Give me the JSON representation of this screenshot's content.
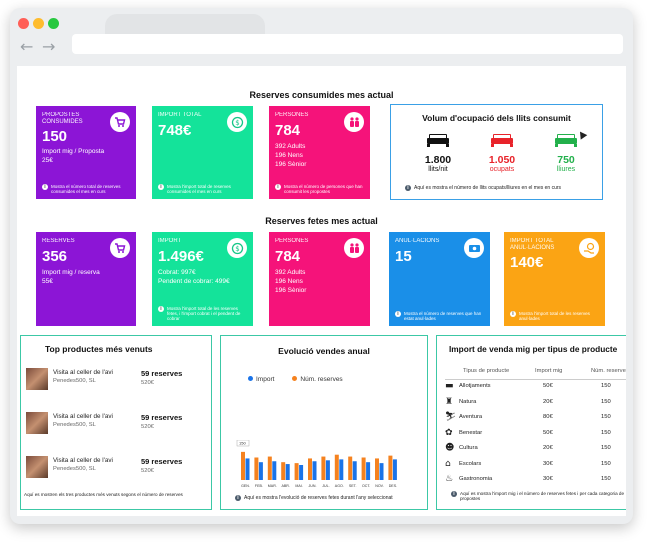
{
  "section1": {
    "title": "Reserves consumides mes actual"
  },
  "s1cards": [
    {
      "label": "PROPOSTES CONSUMIDES",
      "value": "150",
      "lines": [
        "Import mig / Proposta",
        "25€"
      ],
      "footer": "Mostra el número total de reserves consumides el mes en curs",
      "color": "#8c15d6",
      "icon": "cart-icon",
      "icon_color": "#8c15d6"
    },
    {
      "label": "IMPORT TOTAL",
      "value": "748€",
      "lines": [],
      "footer": "Mostra l'import total de reserves consumides el mes en curs",
      "color": "#14e39a",
      "icon": "coin-icon",
      "icon_color": "#14c787"
    },
    {
      "label": "PERSONES",
      "value": "784",
      "lines": [
        "392 Adults",
        "196 Nens",
        "196 Sènior"
      ],
      "footer": "Mostra el número de persones que han consumit les propostes",
      "color": "#f5137a",
      "icon": "people-icon",
      "icon_color": "#f5137a"
    }
  ],
  "occupancy": {
    "title": "Volum d'ocupació dels llits consumit",
    "items": [
      {
        "value": "1.800",
        "label": "llits/nit",
        "color": "#111111"
      },
      {
        "value": "1.050",
        "label": "ocupats",
        "color": "#e8232a"
      },
      {
        "value": "750",
        "label": "lliures",
        "color": "#22b04b"
      }
    ],
    "note": "Aquí es mostra el número de llits ocupats/lliures en el mes en curs"
  },
  "section2": {
    "title": "Reserves fetes mes actual"
  },
  "s2cards": [
    {
      "label": "RESERVES",
      "value": "356",
      "lines": [
        "Import mig / reserva",
        "55€"
      ],
      "footer": "",
      "color": "#8c15d6",
      "icon": "cart-icon",
      "icon_color": "#8c15d6"
    },
    {
      "label": "IMPORT",
      "value": "1.496€",
      "lines": [
        "Cobrat: 997€",
        "Pendent de cobrar: 499€"
      ],
      "footer": "Mostra l'import total de les reserves fetes, i l'import cobrat i el pendent de cobrar",
      "color": "#14e39a",
      "icon": "coin-icon",
      "icon_color": "#14c787"
    },
    {
      "label": "PERSONES",
      "value": "784",
      "lines": [
        "392 Adults",
        "196 Nens",
        "196 Sènior"
      ],
      "footer": "",
      "color": "#f5137a",
      "icon": "people-icon",
      "icon_color": "#f5137a"
    },
    {
      "label": "ANUL·LACIONS",
      "value": "15",
      "lines": [],
      "footer": "Mostra el número de reserves que han estat anul·lades",
      "color": "#1a8fe8",
      "icon": "cash-icon",
      "icon_color": "#1a8fe8"
    },
    {
      "label": "IMPORT TOTAL ANUL·LACIONS",
      "value": "140€",
      "lines": [],
      "footer": "Mostra l'import total de les reserves anul·lades",
      "color": "#fba414",
      "icon": "hand-coin-icon",
      "icon_color": "#fba414"
    }
  ],
  "top_products": {
    "title": "Top productes més venuts",
    "items": [
      {
        "name": "Visita al celler de l'avi",
        "company": "Penedes500, SL",
        "reserves": "59 reserves",
        "amount": "520€"
      },
      {
        "name": "Visita al celler de l'avi",
        "company": "Penedes500, SL",
        "reserves": "59 reserves",
        "amount": "520€"
      },
      {
        "name": "Visita al celler de l'avi",
        "company": "Penedes500, SL",
        "reserves": "59 reserves",
        "amount": "520€"
      }
    ],
    "note": "Aquí es mostren els tres productes més venuts segons el número de reserves"
  },
  "annual": {
    "title": "Evolució vendes anual",
    "legend": [
      {
        "name": "Import",
        "color": "#1a73e8"
      },
      {
        "name": "Núm. reserves",
        "color": "#f5821f"
      }
    ],
    "tooltip": "150",
    "note": "Aquí es mostra l'evolució de reserves fetes durant l'any seleccionat"
  },
  "chart_data": {
    "type": "bar",
    "categories": [
      "GEN.",
      "FEB.",
      "MAR.",
      "ABR.",
      "MAI.",
      "JUN.",
      "JUL.",
      "AGO.",
      "SET.",
      "OCT.",
      "NOV.",
      "DES."
    ],
    "series": [
      {
        "name": "Import",
        "values": [
          115,
          95,
          100,
          85,
          80,
          100,
          105,
          110,
          100,
          95,
          90,
          110
        ]
      },
      {
        "name": "Núm. reserves",
        "values": [
          150,
          120,
          125,
          95,
          90,
          115,
          125,
          135,
          125,
          120,
          115,
          130
        ]
      }
    ],
    "ylim": [
      0,
      160
    ]
  },
  "import_table": {
    "title": "Import de venda mig per tipus de producte",
    "headers": [
      "Tipus de producte",
      "Import mig",
      "Núm. reserves"
    ],
    "rows": [
      {
        "type": "Allotjaments",
        "icon": "bed-icon",
        "import": "50€",
        "reserves": "150"
      },
      {
        "type": "Natura",
        "icon": "hiker-icon",
        "import": "20€",
        "reserves": "150"
      },
      {
        "type": "Aventura",
        "icon": "skier-icon",
        "import": "80€",
        "reserves": "150"
      },
      {
        "type": "Benestar",
        "icon": "lotus-icon",
        "import": "50€",
        "reserves": "150"
      },
      {
        "type": "Cultura",
        "icon": "masks-icon",
        "import": "20€",
        "reserves": "150"
      },
      {
        "type": "Escolars",
        "icon": "school-icon",
        "import": "30€",
        "reserves": "150"
      },
      {
        "type": "Gastronomia",
        "icon": "food-icon",
        "import": "30€",
        "reserves": "150"
      }
    ],
    "note": "Aquí es mostra l'import mig i el número de reserves fetes i per cada categoria de propostes"
  }
}
